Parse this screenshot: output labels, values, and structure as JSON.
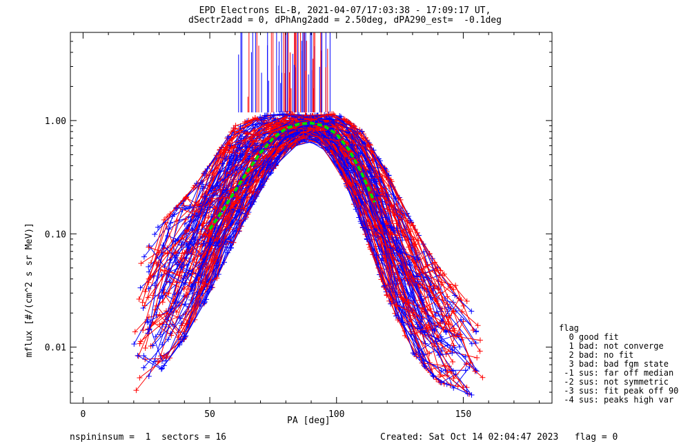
{
  "chart_data": {
    "type": "line",
    "title": [
      "EPD Electrons EL-B, 2021-04-07/17:03:38 - 17:09:17 UT,",
      "dSectr2add = 0, dPhAng2add = 2.50deg, dPA290_est=  -0.1deg"
    ],
    "xlabel": "PA [deg]",
    "ylabel": "mflux [#/(cm^2 s sr MeV)]",
    "xlim": [
      -5,
      185
    ],
    "ylim": [
      0.0032,
      6.0
    ],
    "yscale": "log",
    "xticks": [
      0,
      50,
      100,
      150
    ],
    "xtick_labels": [
      "0",
      "50",
      "100",
      "150"
    ],
    "yticks": [
      0.01,
      0.1,
      1.0
    ],
    "ytick_labels": [
      "0.01",
      "0.10",
      "1.00"
    ],
    "grid": false,
    "fit_curve": {
      "name": "fit",
      "color": "#00dd00",
      "x": [
        50,
        55,
        60,
        65,
        70,
        75,
        80,
        85,
        90,
        95,
        100,
        105,
        110,
        115
      ],
      "y": [
        0.11,
        0.16,
        0.24,
        0.36,
        0.52,
        0.7,
        0.85,
        0.93,
        0.95,
        0.9,
        0.76,
        0.55,
        0.34,
        0.19
      ]
    },
    "envelope": {
      "x": [
        20,
        30,
        40,
        50,
        60,
        70,
        80,
        90,
        100,
        110,
        120,
        130,
        140,
        150,
        158
      ],
      "ylow": [
        0.004,
        0.006,
        0.012,
        0.03,
        0.09,
        0.25,
        0.55,
        0.75,
        0.45,
        0.12,
        0.028,
        0.009,
        0.005,
        0.004,
        0.0035
      ],
      "yhigh": [
        0.04,
        0.12,
        0.2,
        0.4,
        0.9,
        1.1,
        1.15,
        1.1,
        1.15,
        0.8,
        0.35,
        0.12,
        0.05,
        0.03,
        0.012
      ]
    },
    "series": [
      {
        "color": "#0000ff"
      },
      {
        "color": "#ff0000"
      }
    ],
    "spike_region": {
      "x_from": 61,
      "x_to": 98,
      "y_from": 1.18,
      "y_to": 6.0
    }
  },
  "legend": {
    "title": "flag",
    "items": [
      "  0 good fit",
      "  1 bad: not converge",
      "  2 bad: no fit",
      "  3 bad: bad fgm state",
      " -1 sus: far off median",
      " -2 sus: not symmetric",
      " -3 sus: fit peak off 90",
      " -4 sus: peaks high var"
    ]
  },
  "footer": {
    "left": "nspininsum =  1  sectors = 16",
    "right": "Created: Sat Oct 14 02:04:47 2023   flag = 0"
  }
}
